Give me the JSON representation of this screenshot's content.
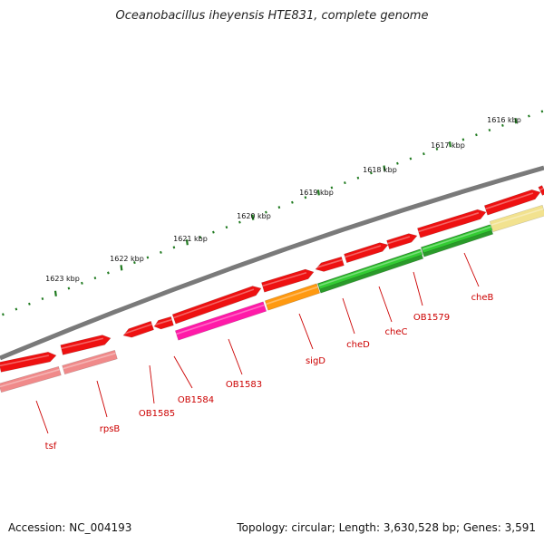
{
  "title": "Oceanobacillus iheyensis HTE831, complete genome",
  "footer": {
    "accession": "Accession: NC_004193",
    "topology": "Topology: circular; Length: 3,630,528 bp; Genes: 3,591"
  },
  "colors": {
    "backbone": "#7a7a7a",
    "tick": "#1f7a1f",
    "label": "#cc0000",
    "red": "#ee1111",
    "pink": "#f08a8a",
    "magenta": "#ff1aa8",
    "orange": "#ff9910",
    "green": "#33cc33",
    "darkgreen": "#2a9a2a",
    "khaki": "#f2e28f"
  },
  "kbp_labels": [
    "1616 kbp",
    "1617 kbp",
    "1618 kbp",
    "1619 kbp",
    "1620 kbp",
    "1621 kbp",
    "1622 kbp",
    "1623 kbp"
  ],
  "gene_labels": [
    "cheB",
    "OB1579",
    "cheC",
    "cheD",
    "sigD",
    "OB1583",
    "OB1584",
    "OB1585",
    "rpsB",
    "tsf"
  ]
}
